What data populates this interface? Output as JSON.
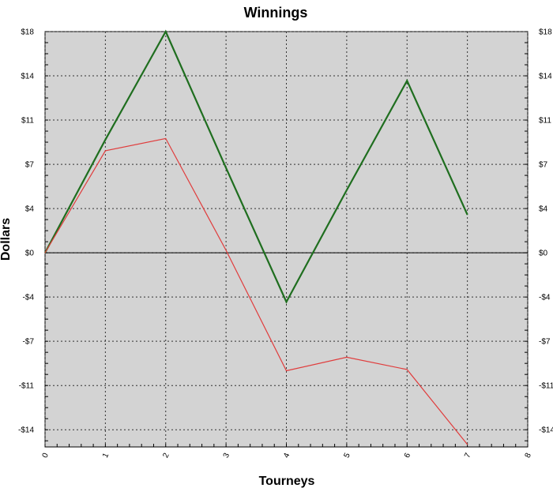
{
  "chart_data": {
    "type": "line",
    "title": "Winnings",
    "xlabel": "Tourneys",
    "ylabel": "Dollars",
    "xlim": [
      0,
      8
    ],
    "ylim": [
      -15.8,
      18
    ],
    "x_ticks": [
      "0",
      "1",
      "2",
      "3",
      "4",
      "5",
      "6",
      "7",
      "8"
    ],
    "y_ticks": [
      {
        "value": 18,
        "label": "$18"
      },
      {
        "value": 14.4,
        "label": "$14"
      },
      {
        "value": 10.8,
        "label": "$11"
      },
      {
        "value": 7.2,
        "label": "$7"
      },
      {
        "value": 3.6,
        "label": "$4"
      },
      {
        "value": 0,
        "label": "$0"
      },
      {
        "value": -3.6,
        "label": "-$4"
      },
      {
        "value": -7.2,
        "label": "-$7"
      },
      {
        "value": -10.8,
        "label": "-$11"
      },
      {
        "value": -14.4,
        "label": "-$14"
      }
    ],
    "grid": true,
    "series": [
      {
        "color": "#1f6e1f",
        "x": [
          0,
          1,
          2,
          3,
          4,
          5,
          6,
          7
        ],
        "values": [
          0,
          9.2,
          18,
          6.9,
          -4.0,
          5.1,
          14.0,
          3.1
        ]
      },
      {
        "color": "#e03c3c",
        "x": [
          0,
          1,
          2,
          3,
          4,
          5,
          6,
          7
        ],
        "values": [
          0,
          8.3,
          9.3,
          0.2,
          -9.6,
          -8.5,
          -9.5,
          -15.6
        ]
      }
    ]
  }
}
